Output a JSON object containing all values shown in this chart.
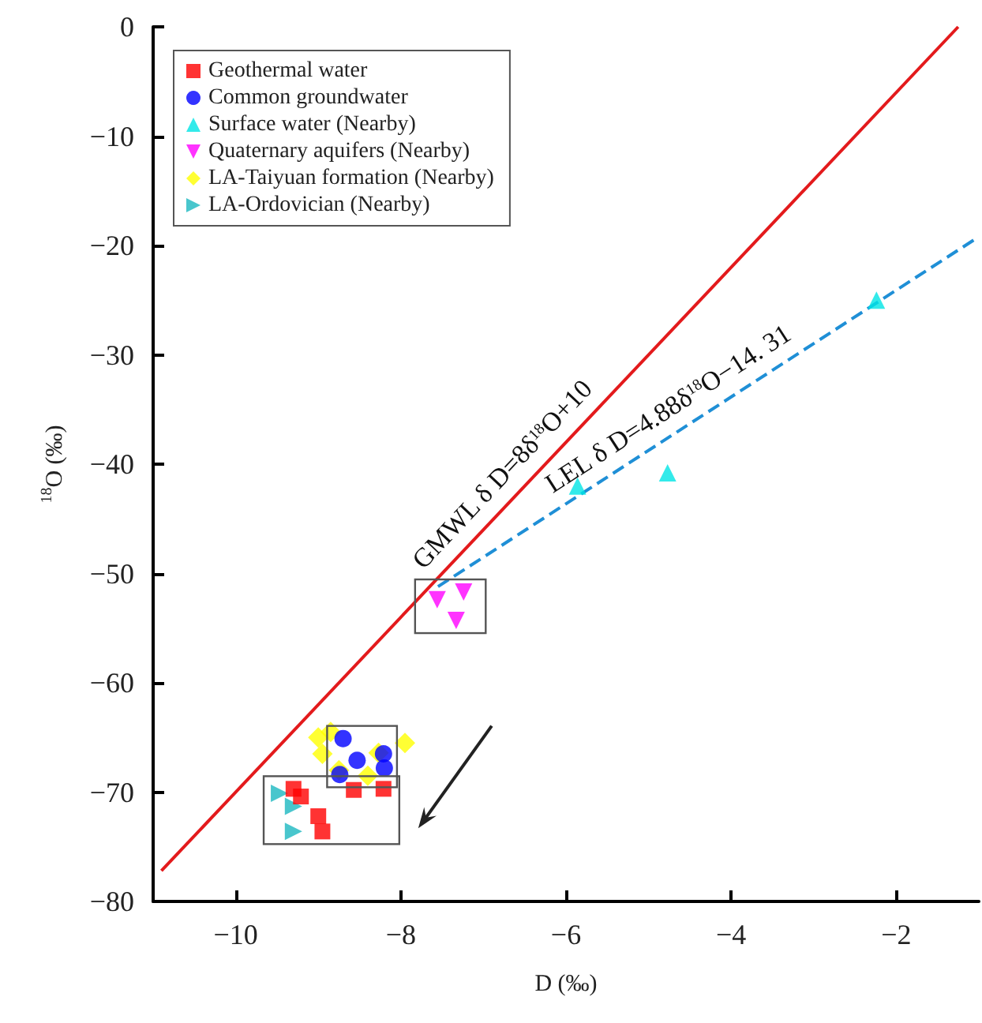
{
  "chart_data": {
    "type": "scatter",
    "xlabel": "D (‰)",
    "ylabel": "$^{18}$O (‰)",
    "xlim": [
      -11,
      -1
    ],
    "xticks": [
      -10,
      -8,
      -6,
      -4,
      -2
    ],
    "ylim": [
      -80,
      0
    ],
    "yticks": [
      0,
      -10,
      -20,
      -30,
      -40,
      -50,
      -60,
      -70,
      -80
    ],
    "grid": false,
    "legend": "top left",
    "series": [
      {
        "name": "Geothermal water",
        "color": "#ff0000",
        "marker": "square",
        "x": [
          -9.3,
          -9.21,
          -9.0,
          -8.95,
          -8.57,
          -8.21
        ],
        "values": [
          -69.7,
          -70.4,
          -72.2,
          -73.6,
          -69.8,
          -69.7
        ]
      },
      {
        "name": "Common groundwater",
        "color": "#0000ff",
        "marker": "circle",
        "x": [
          -8.7,
          -8.53,
          -8.2,
          -8.21,
          -8.74
        ],
        "values": [
          -65.1,
          -67.1,
          -67.8,
          -66.5,
          -68.4
        ]
      },
      {
        "name": "Surface water (Nearby)",
        "color": "#00e5e5",
        "marker": "triangle",
        "x": [
          -5.86,
          -4.77,
          -2.24
        ],
        "values": [
          -42.0,
          -40.8,
          -25.0
        ]
      },
      {
        "name": "Quaternary aquifers (Nearby)",
        "color": "#ff00ff",
        "marker": "triangle_down",
        "x": [
          -7.56,
          -7.24,
          -7.33
        ],
        "values": [
          -52.4,
          -51.7,
          -54.3
        ]
      },
      {
        "name": "LA-Taiyuan formation (Nearby)",
        "color": "#ffff00",
        "marker": "diamond",
        "x": [
          -9.0,
          -8.95,
          -8.75,
          -8.27,
          -8.4,
          -7.95,
          -8.85
        ],
        "values": [
          -65.0,
          -66.5,
          -68.0,
          -66.4,
          -68.5,
          -65.5,
          -64.5
        ]
      },
      {
        "name": "LA-Ordovician (Nearby)",
        "color": "#1cb8c0",
        "marker": "triangle_right",
        "x": [
          -9.47,
          -9.3,
          -9.3
        ],
        "values": [
          -70.1,
          -71.3,
          -73.6
        ]
      },
      {
        "type": "line",
        "color": "#e31a1c",
        "line_style": "solid",
        "marker": "none",
        "x": [
          -10.9,
          -1.25
        ],
        "values": [
          -77.2,
          0
        ]
      },
      {
        "type": "line",
        "color": "#1f8fd6",
        "line_style": "dashed",
        "marker": "none",
        "x": [
          -7.55,
          -1
        ],
        "values": [
          -51.2,
          -19.2
        ]
      }
    ],
    "annotations": [
      "GMWL  δ D=8δ$^{18}$O+10",
      "LEL  δ D=4.88δ$^{18}$O−14. 31"
    ]
  }
}
